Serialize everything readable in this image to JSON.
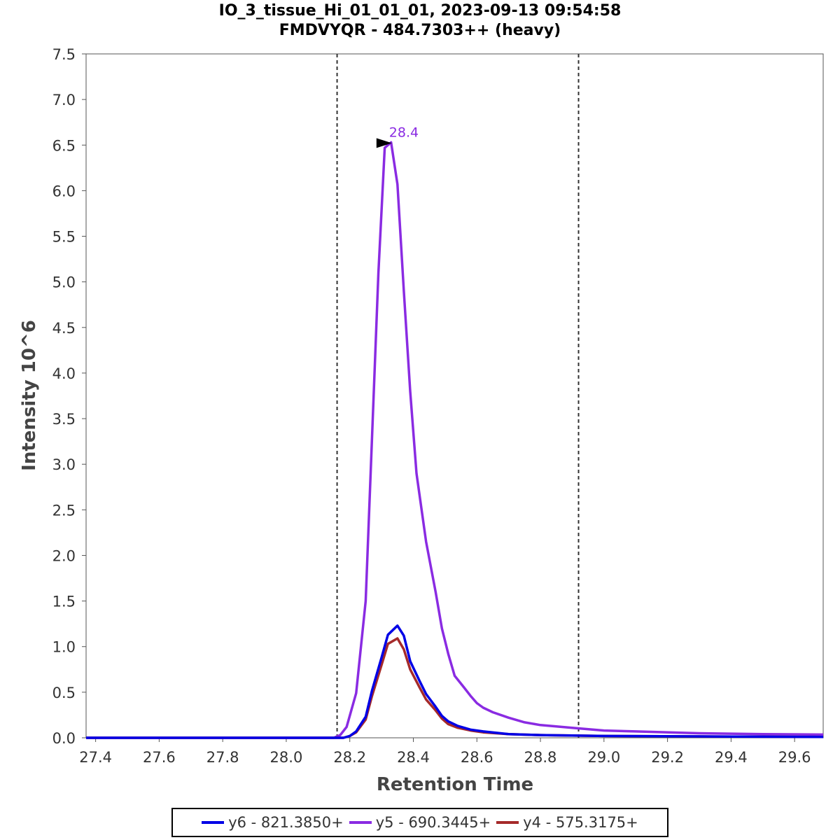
{
  "chart_data": {
    "type": "line",
    "title": "IO_3_tissue_Hi_01_01_01, 2023-09-13 09:54:58",
    "subtitle": "FMDVYQR - 484.7303++ (heavy)",
    "xlabel": "Retention Time",
    "ylabel": "Intensity 10^6",
    "xlim": [
      27.37,
      29.69
    ],
    "ylim": [
      0,
      7.5
    ],
    "xticks": [
      "27.4",
      "27.6",
      "27.8",
      "28.0",
      "28.2",
      "28.4",
      "28.6",
      "28.8",
      "29.0",
      "29.2",
      "29.4",
      "29.6"
    ],
    "yticks": [
      "0.0",
      "0.5",
      "1.0",
      "1.5",
      "2.0",
      "2.5",
      "3.0",
      "3.5",
      "4.0",
      "4.5",
      "5.0",
      "5.5",
      "6.0",
      "6.5",
      "7.0",
      "7.5"
    ],
    "grid": false,
    "legend_position": "bottom",
    "boundaries": [
      28.16,
      28.92
    ],
    "peak_annotation": {
      "label": "28.4",
      "x": 28.35,
      "y": 6.53,
      "color": "#8a2be2"
    },
    "series": [
      {
        "name": "y6 - 821.3850+",
        "color": "#0000e6",
        "x": [
          27.37,
          28.18,
          28.2,
          28.22,
          28.25,
          28.27,
          28.3,
          28.32,
          28.35,
          28.37,
          28.39,
          28.42,
          28.44,
          28.47,
          28.49,
          28.51,
          28.54,
          28.58,
          28.62,
          28.7,
          28.8,
          29.0,
          29.3,
          29.69
        ],
        "values": [
          0.0,
          0.0,
          0.02,
          0.07,
          0.23,
          0.52,
          0.88,
          1.13,
          1.23,
          1.12,
          0.84,
          0.62,
          0.48,
          0.34,
          0.24,
          0.18,
          0.13,
          0.09,
          0.07,
          0.04,
          0.03,
          0.02,
          0.015,
          0.01
        ]
      },
      {
        "name": "y5 - 690.3445+",
        "color": "#8a2be2",
        "x": [
          27.37,
          28.15,
          28.17,
          28.19,
          28.22,
          28.25,
          28.29,
          28.31,
          28.33,
          28.35,
          28.37,
          28.39,
          28.41,
          28.44,
          28.47,
          28.49,
          28.51,
          28.53,
          28.56,
          28.58,
          28.6,
          28.62,
          28.65,
          28.7,
          28.75,
          28.8,
          28.9,
          29.0,
          29.1,
          29.3,
          29.5,
          29.69
        ],
        "values": [
          0.0,
          0.0,
          0.03,
          0.12,
          0.49,
          1.5,
          5.1,
          6.47,
          6.53,
          6.07,
          4.9,
          3.8,
          2.9,
          2.15,
          1.6,
          1.2,
          0.92,
          0.68,
          0.55,
          0.46,
          0.38,
          0.33,
          0.28,
          0.22,
          0.17,
          0.14,
          0.11,
          0.08,
          0.07,
          0.05,
          0.04,
          0.035
        ]
      },
      {
        "name": "y4 - 575.3175+",
        "color": "#a52a2a",
        "x": [
          27.37,
          28.18,
          28.2,
          28.22,
          28.25,
          28.27,
          28.3,
          28.32,
          28.35,
          28.37,
          28.39,
          28.42,
          28.44,
          28.47,
          28.49,
          28.51,
          28.54,
          28.58,
          28.62,
          28.7,
          28.8,
          29.0,
          29.3,
          29.69
        ],
        "values": [
          0.0,
          0.0,
          0.02,
          0.06,
          0.2,
          0.46,
          0.8,
          1.03,
          1.09,
          0.97,
          0.75,
          0.55,
          0.42,
          0.3,
          0.21,
          0.15,
          0.11,
          0.08,
          0.06,
          0.04,
          0.03,
          0.02,
          0.015,
          0.01
        ]
      }
    ]
  }
}
